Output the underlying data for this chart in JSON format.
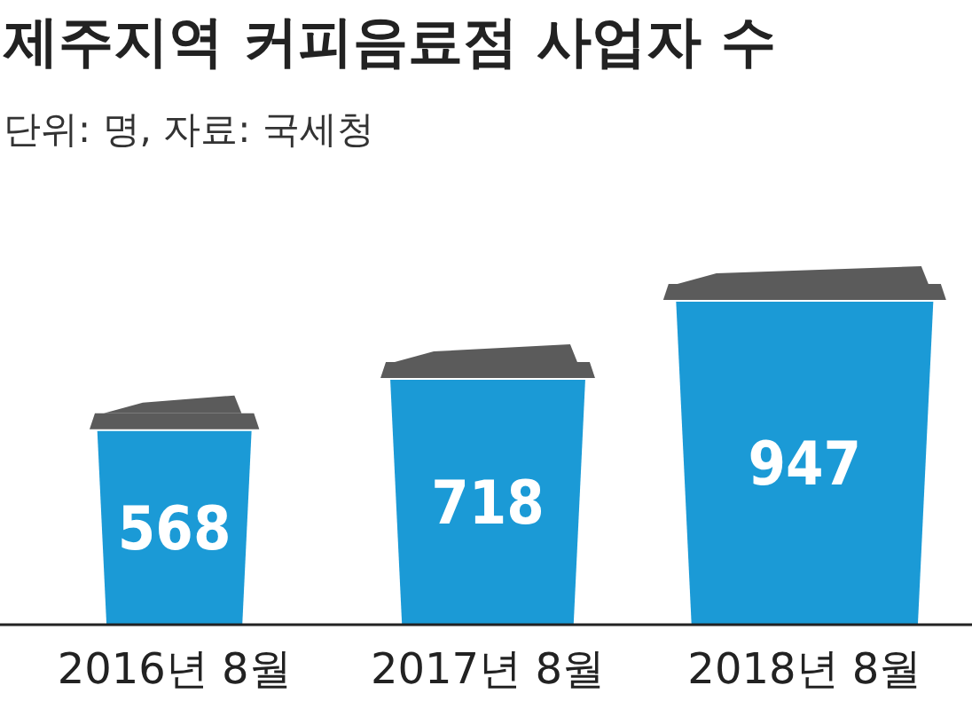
{
  "chart_data": {
    "type": "bar",
    "title": "제주지역 커피음료점 사업자 수",
    "subtitle": "단위: 명, 자료: 국세청",
    "categories": [
      "2016년 8월",
      "2017년 8월",
      "2018년 8월"
    ],
    "values": [
      568,
      718,
      947
    ],
    "color": "#1b9ad6",
    "data_labels": true
  }
}
